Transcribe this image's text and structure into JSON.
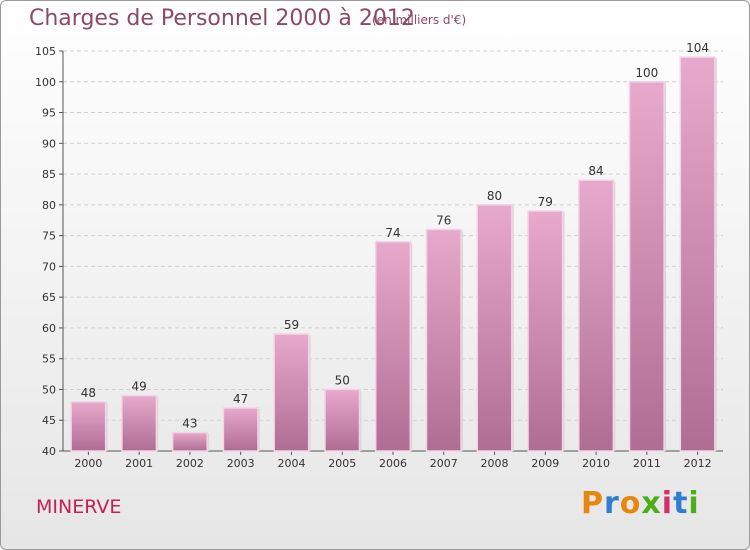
{
  "title": "Charges de Personnel 2000 à 2012",
  "subtitle": "(en milliers d'€)",
  "commune": "MINERVE",
  "logo": {
    "letters": [
      "P",
      "r",
      "o",
      "x",
      "i",
      "t",
      "i"
    ],
    "colors": [
      "#e8860e",
      "#2e7dd1",
      "#e8860e",
      "#4caf1a",
      "#d62d6e",
      "#2e7dd1",
      "#4caf1a"
    ]
  },
  "chart_data": {
    "type": "bar",
    "categories": [
      "2000",
      "2001",
      "2002",
      "2003",
      "2004",
      "2005",
      "2006",
      "2007",
      "2008",
      "2009",
      "2010",
      "2011",
      "2012"
    ],
    "values": [
      48,
      49,
      43,
      47,
      59,
      50,
      74,
      76,
      80,
      79,
      84,
      100,
      104
    ],
    "title": "Charges de Personnel 2000 à 2012",
    "subtitle": "(en milliers d'€)",
    "ylim": [
      40,
      105
    ],
    "yticks": [
      40,
      45,
      50,
      55,
      60,
      65,
      70,
      75,
      80,
      85,
      90,
      95,
      100,
      105
    ],
    "grid": true,
    "bar_color": "#c77fa6"
  }
}
